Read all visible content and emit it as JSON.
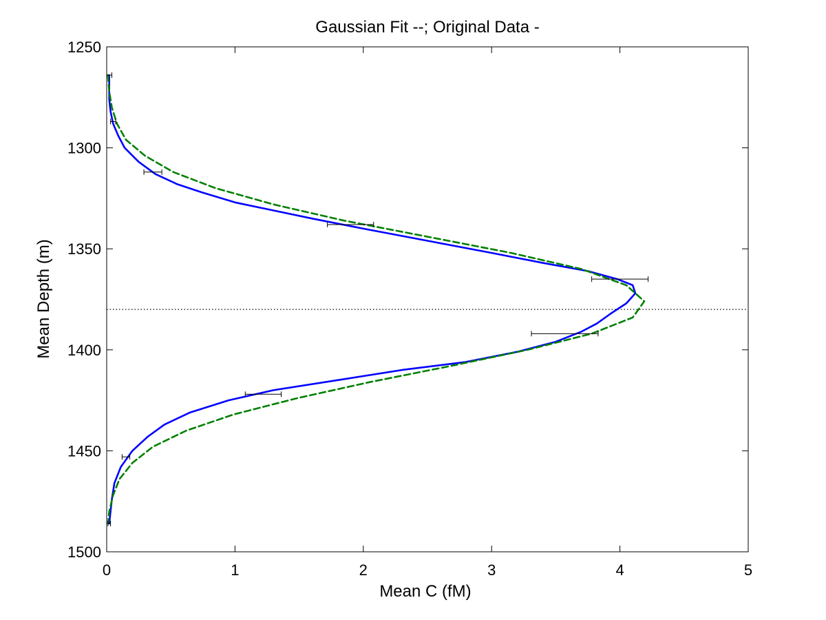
{
  "chart_data": {
    "type": "line",
    "title": "Gaussian Fit --; Original Data -",
    "xlabel": "Mean C  (fM)",
    "ylabel": "Mean Depth (m)",
    "xlim": [
      0,
      5
    ],
    "ylim": [
      1250,
      1500
    ],
    "y_reversed": true,
    "xticks": [
      0,
      1,
      2,
      3,
      4,
      5
    ],
    "yticks": [
      1250,
      1300,
      1350,
      1400,
      1450,
      1500
    ],
    "grid": false,
    "legend": "none",
    "series": [
      {
        "color": "#0000ff",
        "style": "solid",
        "points": [
          [
            0.02,
            1264
          ],
          [
            0.02,
            1270
          ],
          [
            0.02,
            1276
          ],
          [
            0.03,
            1282
          ],
          [
            0.05,
            1288
          ],
          [
            0.09,
            1294
          ],
          [
            0.14,
            1300
          ],
          [
            0.25,
            1307
          ],
          [
            0.38,
            1313
          ],
          [
            0.55,
            1318
          ],
          [
            0.74,
            1322
          ],
          [
            1.0,
            1327
          ],
          [
            1.3,
            1331
          ],
          [
            1.6,
            1335
          ],
          [
            2.0,
            1340
          ],
          [
            2.5,
            1346
          ],
          [
            3.0,
            1352
          ],
          [
            3.4,
            1357
          ],
          [
            3.75,
            1361
          ],
          [
            3.98,
            1365
          ],
          [
            4.1,
            1368
          ],
          [
            4.12,
            1372
          ],
          [
            4.05,
            1377
          ],
          [
            3.93,
            1382
          ],
          [
            3.82,
            1387
          ],
          [
            3.7,
            1391
          ],
          [
            3.5,
            1396
          ],
          [
            3.2,
            1401
          ],
          [
            2.8,
            1406
          ],
          [
            2.3,
            1410
          ],
          [
            1.8,
            1415
          ],
          [
            1.3,
            1420
          ],
          [
            0.95,
            1425
          ],
          [
            0.65,
            1431
          ],
          [
            0.45,
            1437
          ],
          [
            0.32,
            1443
          ],
          [
            0.2,
            1450
          ],
          [
            0.11,
            1458
          ],
          [
            0.06,
            1466
          ],
          [
            0.04,
            1474
          ],
          [
            0.03,
            1480
          ],
          [
            0.02,
            1486
          ]
        ]
      },
      {
        "color": "#008000",
        "style": "dashed",
        "points": [
          [
            0.01,
            1264
          ],
          [
            0.02,
            1272
          ],
          [
            0.04,
            1280
          ],
          [
            0.08,
            1288
          ],
          [
            0.15,
            1296
          ],
          [
            0.3,
            1304
          ],
          [
            0.52,
            1312
          ],
          [
            0.85,
            1320
          ],
          [
            1.3,
            1328
          ],
          [
            1.85,
            1336
          ],
          [
            2.5,
            1344
          ],
          [
            3.15,
            1352
          ],
          [
            3.7,
            1360
          ],
          [
            4.05,
            1368
          ],
          [
            4.19,
            1376
          ],
          [
            4.1,
            1384
          ],
          [
            3.78,
            1392
          ],
          [
            3.28,
            1400
          ],
          [
            2.68,
            1408
          ],
          [
            2.05,
            1416
          ],
          [
            1.48,
            1424
          ],
          [
            0.99,
            1432
          ],
          [
            0.62,
            1440
          ],
          [
            0.36,
            1448
          ],
          [
            0.2,
            1456
          ],
          [
            0.1,
            1464
          ],
          [
            0.05,
            1472
          ],
          [
            0.02,
            1480
          ],
          [
            0.01,
            1486
          ]
        ]
      }
    ],
    "error_bars": [
      {
        "y": 1264,
        "x": 0.02,
        "xerr": 0.02
      },
      {
        "y": 1287,
        "x": 0.05,
        "xerr": 0.02
      },
      {
        "y": 1312,
        "x": 0.36,
        "xerr": 0.07
      },
      {
        "y": 1338,
        "x": 1.9,
        "xerr": 0.18
      },
      {
        "y": 1365,
        "x": 4.0,
        "xerr": 0.22
      },
      {
        "y": 1392,
        "x": 3.57,
        "xerr": 0.26
      },
      {
        "y": 1422,
        "x": 1.22,
        "xerr": 0.14
      },
      {
        "y": 1453,
        "x": 0.15,
        "xerr": 0.03
      },
      {
        "y": 1486,
        "x": 0.02,
        "xerr": 0.01
      }
    ],
    "reference_line": {
      "y": 1380,
      "style": "dotted",
      "color": "#000000"
    }
  }
}
